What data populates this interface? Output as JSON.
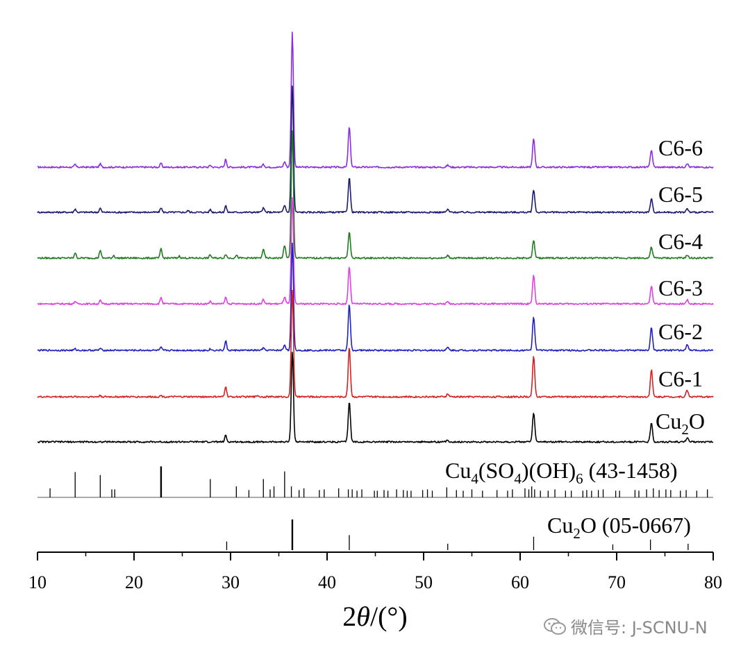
{
  "chart_data": {
    "type": "line",
    "title": "",
    "xlabel": "2θ/(°)",
    "ylabel": "",
    "xlim": [
      10,
      80
    ],
    "xticks": [
      10,
      20,
      30,
      40,
      50,
      60,
      70,
      80
    ],
    "series": [
      {
        "name": "C6-6",
        "color": "#8b2be2",
        "peaks": [
          [
            13.9,
            0.02
          ],
          [
            16.5,
            0.025
          ],
          [
            22.8,
            0.03
          ],
          [
            27.9,
            0.015
          ],
          [
            29.5,
            0.06
          ],
          [
            33.4,
            0.02
          ],
          [
            35.6,
            0.04
          ],
          [
            36.4,
            1.0
          ],
          [
            42.3,
            0.3
          ],
          [
            52.5,
            0.015
          ],
          [
            61.4,
            0.21
          ],
          [
            73.6,
            0.13
          ],
          [
            77.3,
            0.03
          ]
        ]
      },
      {
        "name": "C6-5",
        "color": "#191970",
        "peaks": [
          [
            13.9,
            0.025
          ],
          [
            16.5,
            0.03
          ],
          [
            22.8,
            0.035
          ],
          [
            25.6,
            0.012
          ],
          [
            27.9,
            0.02
          ],
          [
            29.5,
            0.05
          ],
          [
            33.4,
            0.03
          ],
          [
            35.6,
            0.05
          ],
          [
            36.4,
            0.94
          ],
          [
            42.3,
            0.26
          ],
          [
            52.5,
            0.02
          ],
          [
            61.4,
            0.17
          ],
          [
            73.6,
            0.1
          ],
          [
            77.3,
            0.025
          ]
        ]
      },
      {
        "name": "C6-4",
        "color": "#1e7b1e",
        "peaks": [
          [
            13.9,
            0.04
          ],
          [
            16.5,
            0.06
          ],
          [
            17.9,
            0.02
          ],
          [
            22.8,
            0.07
          ],
          [
            24.7,
            0.015
          ],
          [
            27.9,
            0.025
          ],
          [
            29.5,
            0.03
          ],
          [
            30.6,
            0.02
          ],
          [
            33.4,
            0.06
          ],
          [
            35.6,
            0.09
          ],
          [
            36.4,
            0.94
          ],
          [
            42.3,
            0.19
          ],
          [
            52.5,
            0.02
          ],
          [
            61.4,
            0.13
          ],
          [
            73.6,
            0.08
          ],
          [
            77.3,
            0.02
          ]
        ]
      },
      {
        "name": "C6-3",
        "color": "#e040e0",
        "peaks": [
          [
            13.9,
            0.02
          ],
          [
            16.5,
            0.025
          ],
          [
            22.8,
            0.05
          ],
          [
            27.9,
            0.02
          ],
          [
            29.5,
            0.05
          ],
          [
            33.4,
            0.03
          ],
          [
            35.6,
            0.05
          ],
          [
            36.4,
            0.79
          ],
          [
            42.3,
            0.28
          ],
          [
            52.5,
            0.015
          ],
          [
            61.4,
            0.21
          ],
          [
            73.6,
            0.13
          ],
          [
            77.3,
            0.03
          ]
        ]
      },
      {
        "name": "C6-2",
        "color": "#1f1fbf",
        "peaks": [
          [
            13.9,
            0.01
          ],
          [
            16.5,
            0.015
          ],
          [
            22.8,
            0.02
          ],
          [
            27.9,
            0.01
          ],
          [
            29.5,
            0.07
          ],
          [
            33.4,
            0.015
          ],
          [
            35.6,
            0.04
          ],
          [
            36.4,
            0.79
          ],
          [
            42.3,
            0.34
          ],
          [
            52.5,
            0.02
          ],
          [
            61.4,
            0.25
          ],
          [
            73.6,
            0.17
          ],
          [
            77.3,
            0.04
          ]
        ]
      },
      {
        "name": "C6-1",
        "color": "#d62020",
        "peaks": [
          [
            16.5,
            0.01
          ],
          [
            22.8,
            0.01
          ],
          [
            29.5,
            0.08
          ],
          [
            32.8,
            0.01
          ],
          [
            36.4,
            0.79
          ],
          [
            42.3,
            0.37
          ],
          [
            52.5,
            0.02
          ],
          [
            61.4,
            0.3
          ],
          [
            73.6,
            0.2
          ],
          [
            77.3,
            0.05
          ]
        ]
      },
      {
        "name": "Cu2O",
        "color": "#000000",
        "peaks": [
          [
            29.5,
            0.05
          ],
          [
            36.4,
            0.67
          ],
          [
            42.3,
            0.3
          ],
          [
            52.5,
            0.01
          ],
          [
            61.4,
            0.22
          ],
          [
            73.6,
            0.14
          ],
          [
            77.3,
            0.03
          ]
        ]
      }
    ],
    "references": [
      {
        "name": "Cu4(SO4)(OH)6 (43-1458)",
        "lines": [
          [
            11.3,
            0.27
          ],
          [
            13.9,
            0.76
          ],
          [
            16.5,
            0.67
          ],
          [
            17.7,
            0.24
          ],
          [
            18.0,
            0.24
          ],
          [
            22.8,
            0.93
          ],
          [
            27.9,
            0.55
          ],
          [
            30.6,
            0.33
          ],
          [
            31.9,
            0.22
          ],
          [
            33.4,
            0.55
          ],
          [
            34.1,
            0.24
          ],
          [
            34.5,
            0.33
          ],
          [
            35.6,
            0.78
          ],
          [
            36.3,
            0.33
          ],
          [
            37.1,
            0.22
          ],
          [
            37.6,
            0.27
          ],
          [
            39.2,
            0.22
          ],
          [
            39.7,
            0.24
          ],
          [
            41.2,
            0.27
          ],
          [
            42.2,
            0.24
          ],
          [
            42.6,
            0.24
          ],
          [
            43.1,
            0.2
          ],
          [
            43.6,
            0.24
          ],
          [
            44.9,
            0.2
          ],
          [
            45.2,
            0.2
          ],
          [
            45.9,
            0.22
          ],
          [
            46.3,
            0.2
          ],
          [
            47.2,
            0.24
          ],
          [
            47.9,
            0.22
          ],
          [
            48.3,
            0.2
          ],
          [
            48.7,
            0.2
          ],
          [
            49.9,
            0.22
          ],
          [
            50.4,
            0.24
          ],
          [
            50.9,
            0.2
          ],
          [
            52.4,
            0.3
          ],
          [
            53.4,
            0.22
          ],
          [
            54.1,
            0.2
          ],
          [
            55.0,
            0.24
          ],
          [
            56.1,
            0.2
          ],
          [
            57.6,
            0.22
          ],
          [
            58.7,
            0.2
          ],
          [
            59.2,
            0.24
          ],
          [
            60.5,
            0.27
          ],
          [
            60.9,
            0.24
          ],
          [
            61.2,
            0.33
          ],
          [
            61.5,
            0.24
          ],
          [
            62.1,
            0.2
          ],
          [
            62.9,
            0.2
          ],
          [
            63.6,
            0.24
          ],
          [
            64.7,
            0.2
          ],
          [
            65.3,
            0.2
          ],
          [
            66.5,
            0.2
          ],
          [
            66.9,
            0.22
          ],
          [
            67.4,
            0.2
          ],
          [
            68.1,
            0.22
          ],
          [
            68.6,
            0.24
          ],
          [
            69.9,
            0.2
          ],
          [
            70.3,
            0.2
          ],
          [
            71.9,
            0.22
          ],
          [
            72.3,
            0.2
          ],
          [
            73.1,
            0.24
          ],
          [
            73.8,
            0.27
          ],
          [
            74.4,
            0.22
          ],
          [
            75.1,
            0.24
          ],
          [
            75.6,
            0.22
          ],
          [
            76.6,
            0.2
          ],
          [
            77.2,
            0.22
          ],
          [
            78.3,
            0.2
          ],
          [
            79.4,
            0.24
          ]
        ]
      },
      {
        "name": "Cu2O (05-0667)",
        "lines": [
          [
            29.6,
            0.27
          ],
          [
            36.4,
            0.96
          ],
          [
            42.3,
            0.47
          ],
          [
            52.5,
            0.2
          ],
          [
            61.4,
            0.42
          ],
          [
            69.6,
            0.18
          ],
          [
            73.5,
            0.33
          ],
          [
            77.4,
            0.2
          ]
        ]
      }
    ]
  },
  "labels": {
    "series": [
      {
        "base": "C6-6",
        "sub": ""
      },
      {
        "base": "C6-5",
        "sub": ""
      },
      {
        "base": "C6-4",
        "sub": ""
      },
      {
        "base": "C6-3",
        "sub": ""
      },
      {
        "base": "C6-2",
        "sub": ""
      },
      {
        "base": "C6-1",
        "sub": ""
      },
      {
        "base": "Cu",
        "sub": "2",
        "rest": "O"
      }
    ],
    "ref_basic": {
      "p1": "Cu",
      "s1": "4",
      "p2": "(SO",
      "s2": "4",
      "p3": ")(OH)",
      "s3": "6",
      "p4": " (43-1458)"
    },
    "ref_cu2o": {
      "p1": "Cu",
      "s1": "2",
      "p2": "O (05-0667)"
    },
    "xlabel": {
      "two": "2",
      "theta": "θ",
      "unit": "/(°)"
    }
  },
  "watermark": {
    "text": "微信号: J-SCNU-N",
    "icon": "wechat-icon"
  }
}
